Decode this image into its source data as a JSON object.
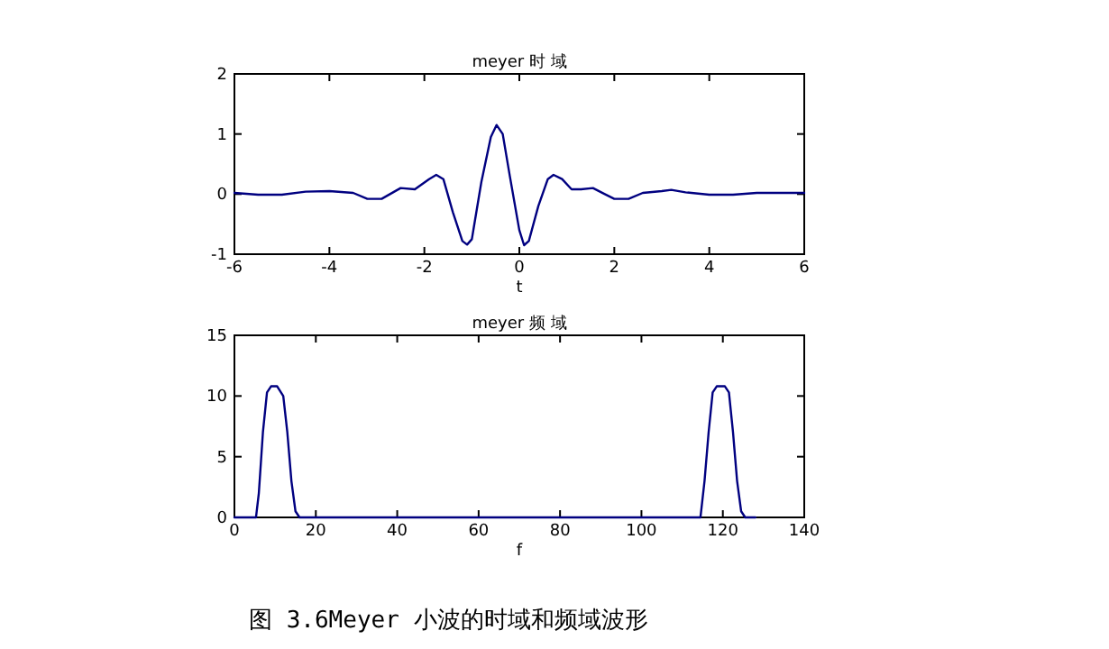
{
  "chart_data": [
    {
      "type": "line",
      "title": "meyer 时 域",
      "xlabel": "t",
      "xlim": [
        -6,
        6
      ],
      "xticks": [
        -6,
        -4,
        -2,
        0,
        2,
        4,
        6
      ],
      "ylim": [
        -1,
        2
      ],
      "yticks": [
        -1,
        0,
        1,
        2
      ],
      "grid": false,
      "series": [
        {
          "color": "#000080",
          "x": [
            -6,
            -5.5,
            -5,
            -4.5,
            -4,
            -3.5,
            -3.2,
            -2.9,
            -2.5,
            -2.2,
            -1.9,
            -1.75,
            -1.6,
            -1.4,
            -1.2,
            -1.1,
            -1.0,
            -0.8,
            -0.6,
            -0.48,
            -0.35,
            -0.2,
            0,
            0.1,
            0.2,
            0.4,
            0.6,
            0.72,
            0.9,
            1.1,
            1.3,
            1.55,
            1.8,
            2.0,
            2.3,
            2.6,
            3.0,
            3.2,
            3.5,
            4.0,
            4.5,
            5.0,
            5.5,
            6
          ],
          "values": [
            0.02,
            -0.01,
            -0.01,
            0.04,
            0.05,
            0.02,
            -0.08,
            -0.08,
            0.1,
            0.08,
            0.25,
            0.32,
            0.25,
            -0.3,
            -0.78,
            -0.84,
            -0.75,
            0.2,
            0.95,
            1.15,
            1.0,
            0.3,
            -0.6,
            -0.85,
            -0.78,
            -0.2,
            0.25,
            0.32,
            0.25,
            0.08,
            0.08,
            0.1,
            0.0,
            -0.08,
            -0.08,
            0.02,
            0.05,
            0.07,
            0.03,
            -0.01,
            -0.01,
            0.02,
            0.02,
            0.02
          ]
        }
      ]
    },
    {
      "type": "line",
      "title": "meyer 频 域",
      "xlabel": "f",
      "xlim": [
        0,
        140
      ],
      "xticks": [
        0,
        20,
        40,
        60,
        80,
        100,
        120,
        140
      ],
      "ylim": [
        0,
        15
      ],
      "yticks": [
        0,
        5,
        10,
        15
      ],
      "grid": false,
      "annotations": [
        "图 3.6Meyer 小波的时域和频域波形"
      ],
      "series": [
        {
          "color": "#000080",
          "x": [
            0,
            5.3,
            6,
            7,
            8,
            9,
            10.5,
            12,
            13,
            14,
            15,
            16,
            20,
            60,
            100,
            114.5,
            115.5,
            116.5,
            117.5,
            118.5,
            120.5,
            121.5,
            122.5,
            123.5,
            124.5,
            125.5,
            128
          ],
          "values": [
            0,
            0,
            2,
            7,
            10.3,
            10.8,
            10.8,
            10,
            7,
            3,
            0.5,
            0,
            0,
            0,
            0,
            0,
            3,
            7,
            10.3,
            10.8,
            10.8,
            10.3,
            7,
            3,
            0.5,
            0,
            0
          ]
        }
      ]
    }
  ]
}
